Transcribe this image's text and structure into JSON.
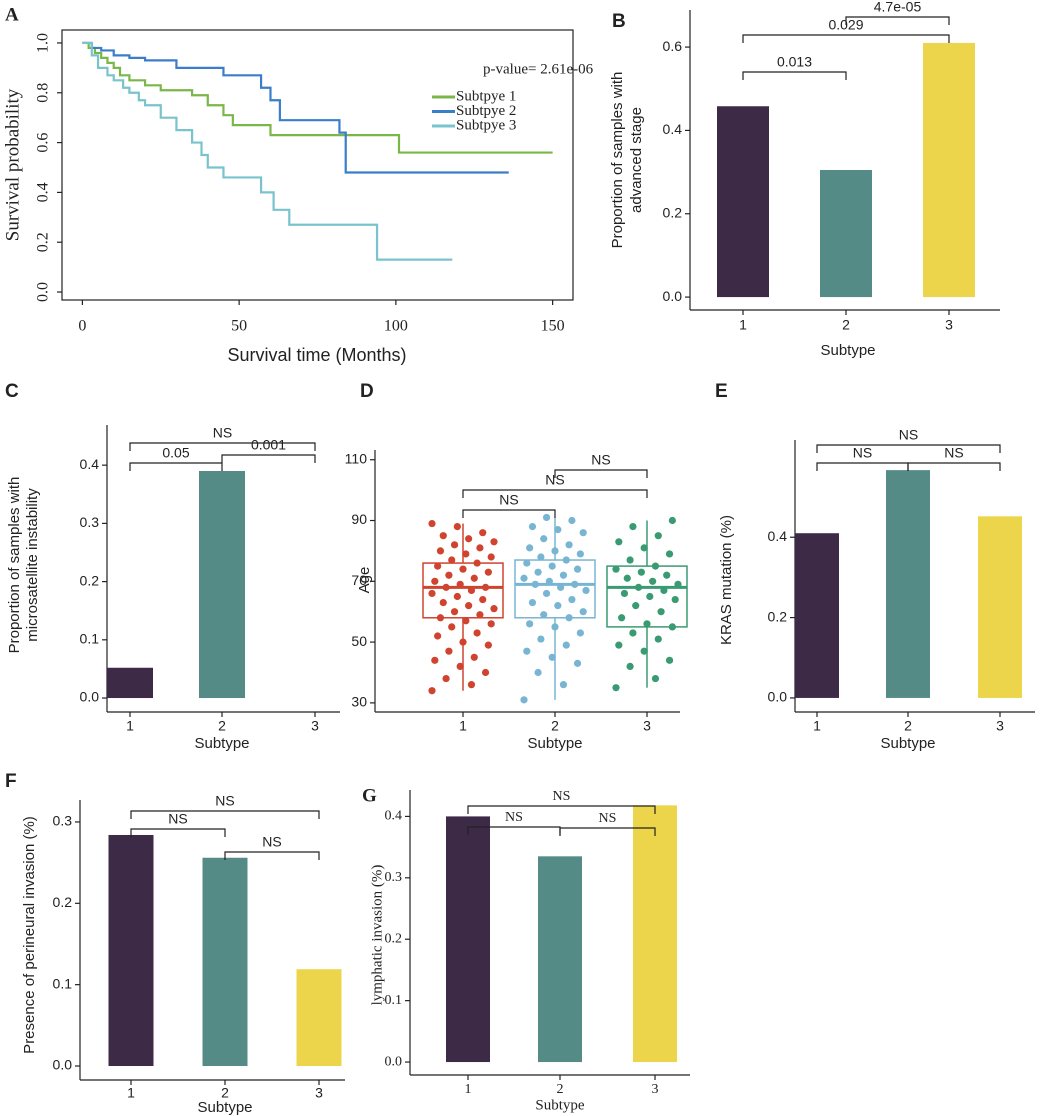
{
  "chart_data": [
    {
      "type": "line",
      "label": "A",
      "drawstyle": "steps-post",
      "xlabel": "Survival time (Months)",
      "ylabel": "Survival probability",
      "annotation": "p-value= 2.61e-06",
      "annotation_color": "#e02020",
      "xlim": [
        -6.5,
        156.5
      ],
      "xticks": [
        0,
        50,
        100,
        150
      ],
      "ylim": [
        -0.032,
        1.052
      ],
      "yticks": [
        {
          "value": 0,
          "label": "0.0"
        },
        0.2,
        0.4,
        0.6,
        0.8,
        {
          "value": 1,
          "label": "1.0"
        }
      ],
      "series": [
        {
          "name": "Subtpye 1",
          "color": "#7ab648",
          "x": [
            0,
            2,
            4,
            6,
            8,
            10,
            12,
            15,
            20,
            25,
            35,
            40,
            45,
            48,
            60,
            101,
            150
          ],
          "values": [
            1,
            0.98,
            0.96,
            0.94,
            0.92,
            0.9,
            0.87,
            0.85,
            0.83,
            0.81,
            0.79,
            0.75,
            0.71,
            0.67,
            0.63,
            0.56,
            0.56
          ]
        },
        {
          "name": "Subtpye 2",
          "color": "#3a7dc9",
          "x": [
            0,
            3,
            6,
            10,
            15,
            20,
            30,
            45,
            57,
            60,
            63,
            82,
            84,
            136
          ],
          "values": [
            1,
            0.98,
            0.97,
            0.95,
            0.94,
            0.93,
            0.9,
            0.87,
            0.82,
            0.77,
            0.69,
            0.64,
            0.48,
            0.48
          ]
        },
        {
          "name": "Subtpye 3",
          "color": "#79c3cc",
          "x": [
            0,
            3,
            5,
            8,
            10,
            13,
            15,
            18,
            20,
            25,
            30,
            35,
            38,
            40,
            45,
            57,
            61,
            66,
            94,
            118
          ],
          "values": [
            1,
            0.95,
            0.9,
            0.87,
            0.85,
            0.82,
            0.8,
            0.77,
            0.75,
            0.7,
            0.65,
            0.6,
            0.55,
            0.5,
            0.46,
            0.4,
            0.33,
            0.27,
            0.13,
            0.13
          ]
        }
      ]
    },
    {
      "type": "bar",
      "label": "B",
      "xlabel": "Subtype",
      "ylabel": [
        "Proportion of samples with",
        "advanced stage"
      ],
      "categories": [
        "1",
        "2",
        "3"
      ],
      "values": [
        0.458,
        0.305,
        0.61
      ],
      "colors": [
        "#3d2a47",
        "#558b86",
        "#ecd54a"
      ],
      "ylim": [
        -0.031,
        0.689
      ],
      "yticks": [
        {
          "value": 0,
          "label": "0.0"
        },
        0.2,
        0.4,
        0.6
      ],
      "comparisons": [
        {
          "groups": [
            "1",
            "2"
          ],
          "label": "0.013"
        },
        {
          "groups": [
            "1",
            "3"
          ],
          "label": "0.029"
        },
        {
          "groups": [
            "2",
            "3"
          ],
          "label": "4.7e-05"
        }
      ]
    },
    {
      "type": "bar",
      "label": "C",
      "xlabel": "Subtype",
      "ylabel": [
        "Proportion of samples with",
        "microsatellite instability"
      ],
      "categories": [
        "1",
        "2",
        "3"
      ],
      "values": [
        0.052,
        0.39,
        0
      ],
      "colors": [
        "#3d2a47",
        "#558b86",
        "#ecd54a"
      ],
      "ylim": [
        -0.024,
        0.469
      ],
      "yticks": [
        {
          "value": 0,
          "label": "0.0"
        },
        0.1,
        0.2,
        0.3,
        0.4
      ],
      "comparisons": [
        {
          "groups": [
            "1",
            "2"
          ],
          "label": "0.05"
        },
        {
          "groups": [
            "2",
            "3"
          ],
          "label": "0.001"
        },
        {
          "groups": [
            "1",
            "3"
          ],
          "label": "NS"
        }
      ]
    },
    {
      "type": "box",
      "label": "D",
      "xlabel": "Subtype",
      "ylabel": "Age",
      "categories": [
        "1",
        "2",
        "3"
      ],
      "colors": [
        "#d0432f",
        "#78b5d3",
        "#3a9a72"
      ],
      "ylim": [
        27,
        113.2
      ],
      "yticks": [
        30,
        50,
        70,
        90,
        110
      ],
      "boxes": [
        {
          "min": 34,
          "q1": 58,
          "median": 68,
          "q3": 76,
          "max": 89
        },
        {
          "min": 31,
          "q1": 58,
          "median": 69,
          "q3": 77,
          "max": 91
        },
        {
          "min": 35,
          "q1": 55,
          "median": 68,
          "q3": 75,
          "max": 90
        }
      ],
      "points": [
        [
          34,
          36,
          38,
          40,
          42,
          44,
          45,
          47,
          49,
          50,
          52,
          53,
          55,
          56,
          57,
          58,
          59,
          60,
          61,
          62,
          63,
          64,
          65,
          66,
          67,
          68,
          68,
          69,
          70,
          71,
          72,
          73,
          74,
          75,
          76,
          77,
          78,
          79,
          80,
          81,
          82,
          83,
          84,
          85,
          86,
          88,
          89
        ],
        [
          31,
          36,
          40,
          43,
          45,
          47,
          49,
          51,
          53,
          55,
          56,
          58,
          59,
          60,
          62,
          63,
          64,
          66,
          67,
          68,
          69,
          69,
          70,
          71,
          72,
          73,
          74,
          75,
          76,
          77,
          78,
          79,
          80,
          81,
          82,
          84,
          86,
          87,
          88,
          90,
          91
        ],
        [
          35,
          38,
          42,
          44,
          47,
          49,
          51,
          53,
          55,
          56,
          58,
          60,
          62,
          64,
          65,
          66,
          67,
          68,
          69,
          70,
          71,
          72,
          73,
          74,
          75,
          77,
          79,
          81,
          83,
          85,
          88,
          90
        ]
      ],
      "comparisons": [
        {
          "groups": [
            "1",
            "2"
          ],
          "label": "NS"
        },
        {
          "groups": [
            "1",
            "3"
          ],
          "label": "NS"
        },
        {
          "groups": [
            "2",
            "3"
          ],
          "label": "NS"
        }
      ]
    },
    {
      "type": "bar",
      "label": "E",
      "xlabel": "Subtype",
      "ylabel": "KRAS mutation (%)",
      "categories": [
        "1",
        "2",
        "3"
      ],
      "values": [
        0.41,
        0.567,
        0.452
      ],
      "colors": [
        "#3d2a47",
        "#558b86",
        "#ecd54a"
      ],
      "ylim": [
        -0.035,
        0.642
      ],
      "yticks": [
        {
          "value": 0,
          "label": "0.0"
        },
        0.2,
        0.4
      ],
      "comparisons": [
        {
          "groups": [
            "1",
            "2"
          ],
          "label": "NS"
        },
        {
          "groups": [
            "2",
            "3"
          ],
          "label": "NS"
        },
        {
          "groups": [
            "1",
            "3"
          ],
          "label": "NS"
        }
      ]
    },
    {
      "type": "bar",
      "label": "F",
      "xlabel": "Subtype",
      "ylabel": "Presence of perineural invasion (%)",
      "categories": [
        "1",
        "2",
        "3"
      ],
      "values": [
        0.284,
        0.256,
        0.119
      ],
      "colors": [
        "#3d2a47",
        "#558b86",
        "#ecd54a"
      ],
      "ylim": [
        -0.0172,
        0.327
      ],
      "yticks": [
        {
          "value": 0,
          "label": "0.0"
        },
        0.1,
        0.2,
        0.3
      ],
      "comparisons": [
        {
          "groups": [
            "1",
            "2"
          ],
          "label": "NS"
        },
        {
          "groups": [
            "2",
            "3"
          ],
          "label": "NS"
        },
        {
          "groups": [
            "1",
            "3"
          ],
          "label": "NS"
        }
      ]
    },
    {
      "type": "bar",
      "label": "G",
      "xlabel": "Subtype",
      "ylabel": "lymphatic invasion (%)",
      "categories": [
        "1",
        "2",
        "3"
      ],
      "values": [
        0.4,
        0.335,
        0.418
      ],
      "colors": [
        "#3d2a47",
        "#558b86",
        "#ecd54a"
      ],
      "ylim": [
        -0.0211,
        0.443
      ],
      "yticks": [
        {
          "value": 0,
          "label": "0.0"
        },
        0.1,
        0.2,
        0.3,
        0.4
      ],
      "comparisons": [
        {
          "groups": [
            "1",
            "2"
          ],
          "label": "NS"
        },
        {
          "groups": [
            "2",
            "3"
          ],
          "label": "NS"
        },
        {
          "groups": [
            "1",
            "3"
          ],
          "label": "NS"
        }
      ]
    }
  ]
}
